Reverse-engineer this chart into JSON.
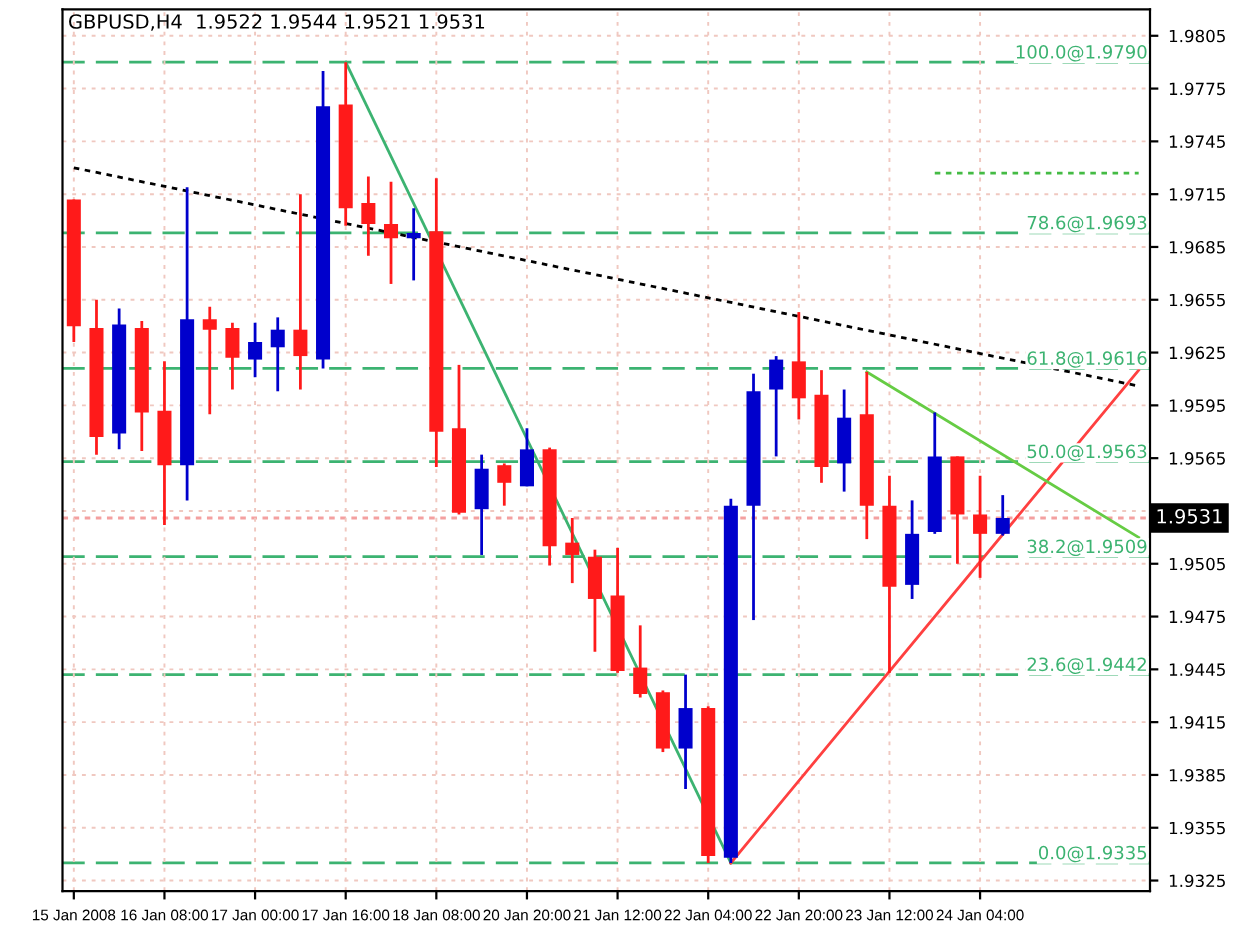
{
  "chart_data": {
    "type": "candlestick",
    "title": "GBPUSD,H4  1.9522 1.9544 1.9521 1.9531",
    "categories": [
      "15 Jan 2008",
      null,
      null,
      null,
      "16 Jan 08:00",
      null,
      null,
      null,
      "17 Jan 00:00",
      null,
      null,
      null,
      "17 Jan 16:00",
      null,
      null,
      null,
      "18 Jan 08:00",
      null,
      null,
      null,
      "20 Jan 20:00",
      null,
      null,
      null,
      "21 Jan 12:00",
      null,
      null,
      null,
      "22 Jan 04:00",
      null,
      null,
      null,
      "22 Jan 20:00",
      null,
      null,
      null,
      "23 Jan 12:00",
      null,
      null,
      null,
      "24 Jan 04:00",
      null,
      null,
      null,
      null,
      null,
      null,
      null
    ],
    "ohlc": [
      [
        1.9712,
        1.9712,
        1.9631,
        1.964
      ],
      [
        1.9639,
        1.9655,
        1.9567,
        1.9577
      ],
      [
        1.9579,
        1.965,
        1.957,
        1.9641
      ],
      [
        1.9639,
        1.9643,
        1.9569,
        1.9591
      ],
      [
        1.9592,
        1.962,
        1.9527,
        1.9561
      ],
      [
        1.9561,
        1.9719,
        1.9541,
        1.9644
      ],
      [
        1.9644,
        1.9651,
        1.959,
        1.9638
      ],
      [
        1.9639,
        1.9642,
        1.9604,
        1.9622
      ],
      [
        1.9621,
        1.9642,
        1.9611,
        1.9631
      ],
      [
        1.9628,
        1.9645,
        1.9603,
        1.9638
      ],
      [
        1.9638,
        1.9715,
        1.9604,
        1.9623
      ],
      [
        1.9621,
        1.9785,
        1.9616,
        1.9765
      ],
      [
        1.9766,
        1.979,
        1.9697,
        1.9707
      ],
      [
        1.971,
        1.9725,
        1.968,
        1.9698
      ],
      [
        1.9698,
        1.9722,
        1.9664,
        1.969
      ],
      [
        1.969,
        1.9707,
        1.9666,
        1.9693
      ],
      [
        1.9694,
        1.9724,
        1.956,
        1.958
      ],
      [
        1.9582,
        1.9618,
        1.9533,
        1.9534
      ],
      [
        1.9536,
        1.9567,
        1.951,
        1.9559
      ],
      [
        1.9561,
        1.9562,
        1.9538,
        1.9551
      ],
      [
        1.9549,
        1.9582,
        1.9549,
        1.957
      ],
      [
        1.957,
        1.9571,
        1.9504,
        1.9515
      ],
      [
        1.9517,
        1.9531,
        1.9494,
        1.951
      ],
      [
        1.9509,
        1.9513,
        1.9455,
        1.9485
      ],
      [
        1.9487,
        1.9514,
        1.9443,
        1.9444
      ],
      [
        1.9446,
        1.947,
        1.9429,
        1.9431
      ],
      [
        1.9432,
        1.9433,
        1.9398,
        1.94
      ],
      [
        1.94,
        1.9442,
        1.9377,
        1.9423
      ],
      [
        1.9423,
        1.9424,
        1.9335,
        1.9339
      ],
      [
        1.9338,
        1.9542,
        1.9335,
        1.9538
      ],
      [
        1.9538,
        1.9613,
        1.9473,
        1.9603
      ],
      [
        1.9604,
        1.9623,
        1.9566,
        1.9621
      ],
      [
        1.962,
        1.9648,
        1.9587,
        1.9599
      ],
      [
        1.9601,
        1.9615,
        1.9551,
        1.956
      ],
      [
        1.9562,
        1.9604,
        1.9546,
        1.9588
      ],
      [
        1.959,
        1.9614,
        1.9519,
        1.9538
      ],
      [
        1.9538,
        1.9555,
        1.9443,
        1.9492
      ],
      [
        1.9493,
        1.9541,
        1.9485,
        1.9522
      ],
      [
        1.9523,
        1.9591,
        1.9522,
        1.9566
      ],
      [
        1.9566,
        1.9566,
        1.9505,
        1.9533
      ],
      [
        1.9533,
        1.9555,
        1.9497,
        1.9522
      ],
      [
        1.9522,
        1.9544,
        1.9521,
        1.9531
      ],
      null,
      null,
      null,
      null,
      null,
      null
    ],
    "colors": [
      "#ff1a1a",
      "#ff1a1a",
      "#0000cc",
      "#ff1a1a",
      "#ff1a1a",
      "#0000cc",
      "#ff1a1a",
      "#ff1a1a",
      "#0000cc",
      "#0000cc",
      "#ff1a1a",
      "#0000cc",
      "#ff1a1a",
      "#ff1a1a",
      "#ff1a1a",
      "#0000cc",
      "#ff1a1a",
      "#ff1a1a",
      "#0000cc",
      "#ff1a1a",
      "#0000cc",
      "#ff1a1a",
      "#ff1a1a",
      "#ff1a1a",
      "#ff1a1a",
      "#ff1a1a",
      "#ff1a1a",
      "#0000cc",
      "#ff1a1a",
      "#0000cc",
      "#0000cc",
      "#0000cc",
      "#ff1a1a",
      "#ff1a1a",
      "#0000cc",
      "#ff1a1a",
      "#ff1a1a",
      "#0000cc",
      "#0000cc",
      "#ff1a1a",
      "#ff1a1a",
      "#0000cc",
      null,
      null,
      null,
      null,
      null,
      null
    ],
    "series": [
      {
        "type": "line",
        "color": "#3cb371",
        "line_style": "solid",
        "values": [
          null,
          null,
          null,
          null,
          null,
          null,
          null,
          null,
          null,
          null,
          null,
          null,
          1.979,
          null,
          null,
          null,
          null,
          null,
          null,
          null,
          null,
          null,
          null,
          null,
          null,
          null,
          null,
          null,
          null,
          1.9335,
          null,
          null,
          null,
          null,
          null,
          null,
          null,
          null,
          null,
          null,
          null,
          null,
          null,
          null,
          null,
          null,
          null,
          null
        ]
      },
      {
        "type": "line",
        "color": "#ff4040",
        "line_style": "solid",
        "values": [
          null,
          null,
          null,
          null,
          null,
          null,
          null,
          null,
          null,
          null,
          null,
          null,
          null,
          null,
          null,
          null,
          null,
          null,
          null,
          null,
          null,
          null,
          null,
          null,
          null,
          null,
          null,
          null,
          null,
          1.9335,
          null,
          null,
          null,
          null,
          null,
          null,
          null,
          null,
          null,
          null,
          null,
          null,
          null,
          null,
          null,
          null,
          null,
          1.9615
        ]
      },
      {
        "type": "line",
        "color": "#66cc44",
        "line_style": "solid",
        "values": [
          null,
          null,
          null,
          null,
          null,
          null,
          null,
          null,
          null,
          null,
          null,
          null,
          null,
          null,
          null,
          null,
          null,
          null,
          null,
          null,
          null,
          null,
          null,
          null,
          null,
          null,
          null,
          null,
          null,
          null,
          null,
          null,
          null,
          null,
          null,
          1.9614,
          null,
          null,
          null,
          null,
          null,
          null,
          null,
          null,
          null,
          null,
          null,
          1.952
        ]
      },
      {
        "type": "line",
        "color": "#000000",
        "line_style": "dotted",
        "values": [
          1.973,
          null,
          null,
          null,
          null,
          null,
          null,
          null,
          null,
          null,
          null,
          null,
          null,
          null,
          null,
          null,
          null,
          null,
          null,
          null,
          null,
          null,
          null,
          null,
          null,
          null,
          null,
          null,
          null,
          null,
          null,
          null,
          null,
          null,
          null,
          null,
          null,
          null,
          null,
          null,
          null,
          null,
          null,
          null,
          null,
          null,
          null,
          1.9606
        ]
      },
      {
        "type": "line",
        "color": "#44bb44",
        "line_style": "dotted",
        "values": [
          null,
          null,
          null,
          null,
          null,
          null,
          null,
          null,
          null,
          null,
          null,
          null,
          null,
          null,
          null,
          null,
          null,
          null,
          null,
          null,
          null,
          null,
          null,
          null,
          null,
          null,
          null,
          null,
          null,
          null,
          null,
          null,
          null,
          null,
          null,
          null,
          null,
          null,
          1.9727,
          null,
          null,
          null,
          null,
          null,
          null,
          null,
          null,
          1.9727
        ]
      }
    ],
    "ref_lines": [
      {
        "axis": "y",
        "value": 1.979,
        "label": "100.0@1.9790",
        "color": "#3cb371",
        "line_style": "dashed"
      },
      {
        "axis": "y",
        "value": 1.9693,
        "label": "78.6@1.9693",
        "color": "#3cb371",
        "line_style": "dashed"
      },
      {
        "axis": "y",
        "value": 1.9616,
        "label": "61.8@1.9616",
        "color": "#3cb371",
        "line_style": "dashed"
      },
      {
        "axis": "y",
        "value": 1.9563,
        "label": "50.0@1.9563",
        "color": "#3cb371",
        "line_style": "dashed"
      },
      {
        "axis": "y",
        "value": 1.9509,
        "label": "38.2@1.9509",
        "color": "#3cb371",
        "line_style": "dashed"
      },
      {
        "axis": "y",
        "value": 1.9442,
        "label": "23.6@1.9442",
        "color": "#3cb371",
        "line_style": "dashed"
      },
      {
        "axis": "y",
        "value": 1.9335,
        "label": "0.0@1.9335",
        "color": "#3cb371",
        "line_style": "dashed"
      },
      {
        "axis": "y",
        "value": 1.9531,
        "label": "1.9531",
        "color": "#f4a0a0",
        "line_style": "dotted"
      }
    ],
    "ylim": [
      1.9319,
      1.982
    ],
    "yticks": [
      1.9325,
      1.9355,
      1.9385,
      1.9415,
      1.9445,
      1.9475,
      1.9505,
      {
        "value": 1.9535,
        "label": null
      },
      1.9565,
      1.9595,
      1.9625,
      1.9655,
      1.9685,
      1.9715,
      1.9745,
      1.9775,
      1.9805
    ],
    "grid": true
  }
}
